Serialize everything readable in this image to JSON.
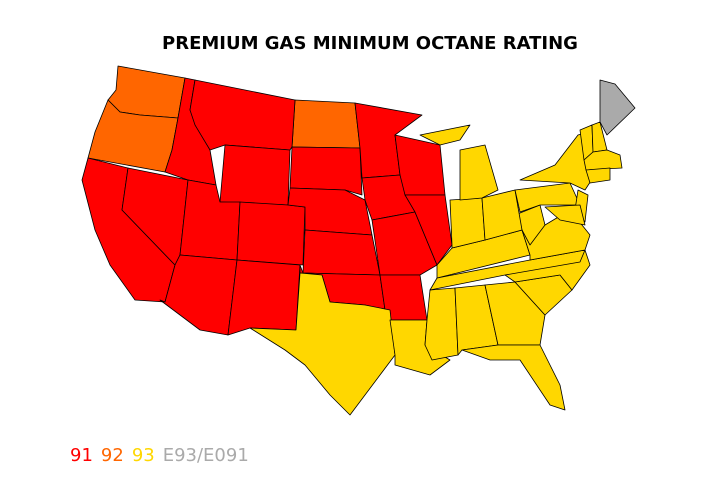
{
  "title": "PREMIUM GAS MINIMUM OCTANE RATING",
  "legend": [
    {
      "label": "91",
      "color": "#ff0000"
    },
    {
      "label": "92",
      "color": "#ff6600"
    },
    {
      "label": "93",
      "color": "#ffd700"
    },
    {
      "label": "E93/E091",
      "color": "#aaaaaa"
    }
  ]
}
